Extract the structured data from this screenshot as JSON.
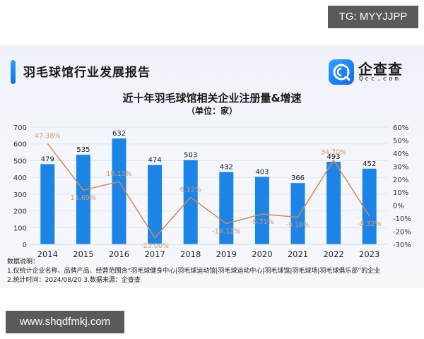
{
  "watermarks": {
    "top": "TG: MYYJJPP",
    "bottom": "www.shqdfmkj.com"
  },
  "header": {
    "report_title": "羽毛球馆行业发展报告",
    "logo_name": "企查查",
    "logo_sub": "Qcc.com",
    "brand_color": "#1b7ee8"
  },
  "chart_data": {
    "type": "bar",
    "title": "近十年羽毛球馆相关企业注册量&增速",
    "subtitle": "（单位：家）",
    "categories": [
      "2014",
      "2015",
      "2016",
      "2017",
      "2018",
      "2019",
      "2020",
      "2021",
      "2022",
      "2023"
    ],
    "series": [
      {
        "name": "注册量",
        "type": "bar",
        "axis": "left",
        "color": "#1b84e6",
        "values": [
          479,
          535,
          632,
          474,
          503,
          432,
          403,
          366,
          493,
          452
        ]
      },
      {
        "name": "增速",
        "type": "line",
        "axis": "right",
        "color": "#d9884f",
        "values": [
          47.38,
          11.69,
          18.13,
          -25.0,
          6.12,
          -14.12,
          -6.71,
          -9.18,
          34.7,
          -8.32
        ],
        "labels": [
          "47.38%",
          "11.69%",
          "18.13%",
          "-25.00%",
          "6.12%",
          "-14.12%",
          "-6.71%",
          "-9.18%",
          "34.70%",
          "-8.32%"
        ]
      }
    ],
    "left_axis": {
      "ticks": [
        "0",
        "100",
        "200",
        "300",
        "400",
        "500",
        "600",
        "700"
      ],
      "ylim": [
        0,
        700
      ]
    },
    "right_axis": {
      "ticks": [
        "-30%",
        "-20%",
        "-10%",
        "0%",
        "10%",
        "20%",
        "30%",
        "40%",
        "50%",
        "60%"
      ],
      "ylim": [
        -30,
        60
      ]
    },
    "grid": true
  },
  "notes": {
    "heading": "数据说明：",
    "line1": "1.仅统计企业名称、品牌产品、经营范围含“羽毛球健身中心|羽毛球运动馆|羽毛球运动中心|羽毛球馆|羽毛球场|羽毛球俱乐部”的企业",
    "line2": "2.统计时间：2024/08/20   3.数据来源：企查查"
  }
}
